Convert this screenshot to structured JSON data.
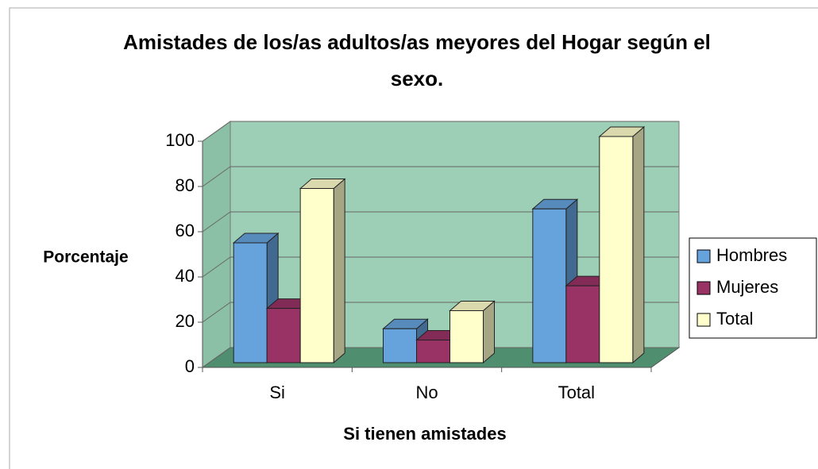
{
  "chart_data": {
    "type": "bar3d",
    "title": "Amistades de los/as adultos/as meyores del Hogar según el sexo.",
    "x_label": "Si tienen amistades",
    "y_label": "Porcentaje",
    "categories": [
      "Si",
      "No",
      "Total"
    ],
    "series": [
      {
        "name": "Hombres",
        "color": "#66a3dd",
        "values": [
          53,
          15,
          68
        ]
      },
      {
        "name": "Mujeres",
        "color": "#993366",
        "values": [
          24,
          10,
          34
        ]
      },
      {
        "name": "Total",
        "color": "#ffffcc",
        "values": [
          77,
          23,
          100
        ]
      }
    ],
    "ylim": [
      0,
      100
    ],
    "yticks": [
      0,
      20,
      40,
      60,
      80,
      100
    ],
    "grid": true,
    "legend": "right"
  }
}
